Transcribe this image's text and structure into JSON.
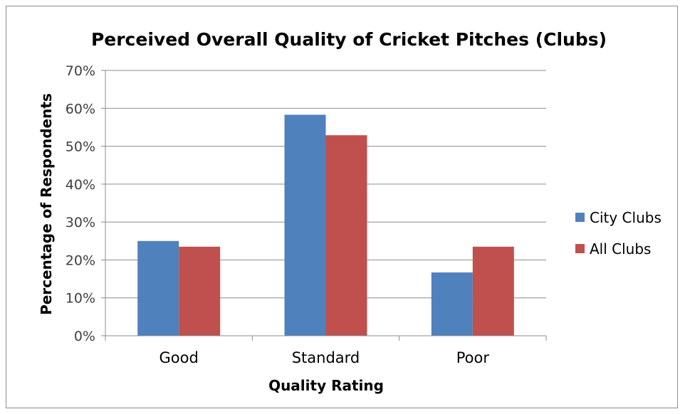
{
  "chart_data": {
    "type": "bar",
    "title": "Perceived Overall Quality of Cricket Pitches (Clubs)",
    "xlabel": "Quality Rating",
    "ylabel": "Percentage of Respondents",
    "categories": [
      "Good",
      "Standard",
      "Poor"
    ],
    "series": [
      {
        "name": "City Clubs",
        "values": [
          25,
          58.3,
          16.7
        ],
        "color": "#4f81bd"
      },
      {
        "name": "All Clubs",
        "values": [
          23.5,
          52.9,
          23.5
        ],
        "color": "#c0504d"
      }
    ],
    "ylim": [
      0,
      70
    ],
    "yticks": [
      "0%",
      "10%",
      "20%",
      "30%",
      "40%",
      "50%",
      "60%",
      "70%"
    ],
    "grid": true,
    "legend_position": "right"
  }
}
